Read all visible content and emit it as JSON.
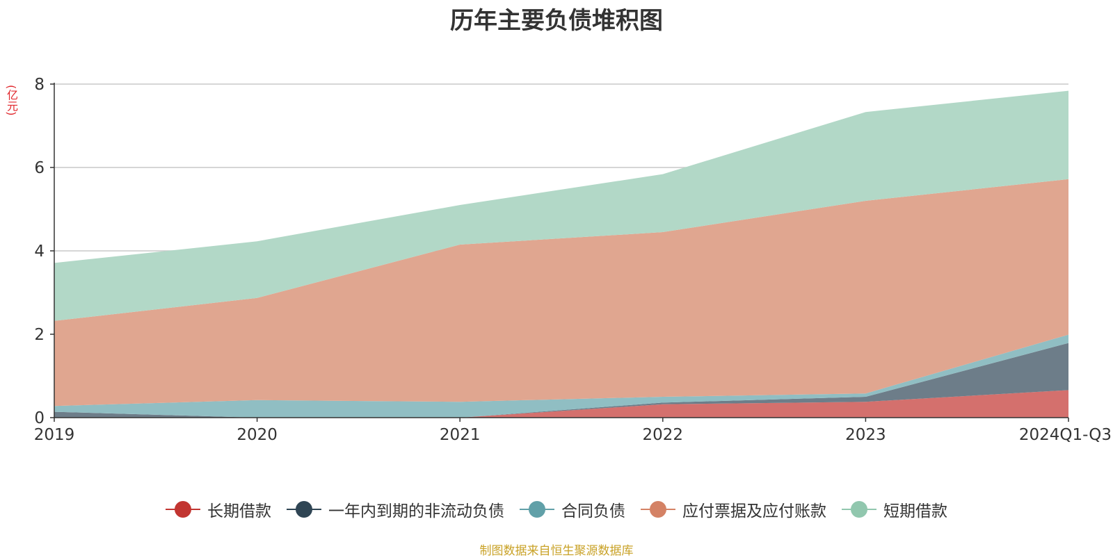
{
  "chart_data": {
    "type": "area",
    "stacked": true,
    "title": "历年主要负债堆积图",
    "unit": "(亿元)",
    "categories": [
      "2019",
      "2020",
      "2021",
      "2022",
      "2023",
      "2024Q1-Q3"
    ],
    "ylim": [
      0,
      8
    ],
    "yticks": [
      0,
      2,
      4,
      6,
      8
    ],
    "grid": true,
    "series": [
      {
        "name": "长期借款",
        "color": "#c23531",
        "area_color": "#d4706d",
        "values": [
          0.0,
          0.0,
          0.0,
          0.32,
          0.38,
          0.66
        ]
      },
      {
        "name": "一年内到期的非流动负债",
        "color": "#2f4554",
        "area_color": "#6d7d89",
        "values": [
          0.14,
          0.0,
          0.0,
          0.04,
          0.12,
          1.13
        ]
      },
      {
        "name": "合同负债",
        "color": "#61a0a8",
        "area_color": "#90bec3",
        "values": [
          0.14,
          0.42,
          0.38,
          0.14,
          0.08,
          0.2
        ]
      },
      {
        "name": "应付票据及应付账款",
        "color": "#d48265",
        "area_color": "#e0a690",
        "values": [
          2.04,
          2.45,
          3.77,
          3.95,
          4.62,
          3.73
        ]
      },
      {
        "name": "短期借款",
        "color": "#91c7ae",
        "area_color": "#b2d8c7",
        "values": [
          1.39,
          1.36,
          0.95,
          1.39,
          2.13,
          2.12
        ]
      }
    ]
  },
  "source": "制图数据来自恒生聚源数据库"
}
